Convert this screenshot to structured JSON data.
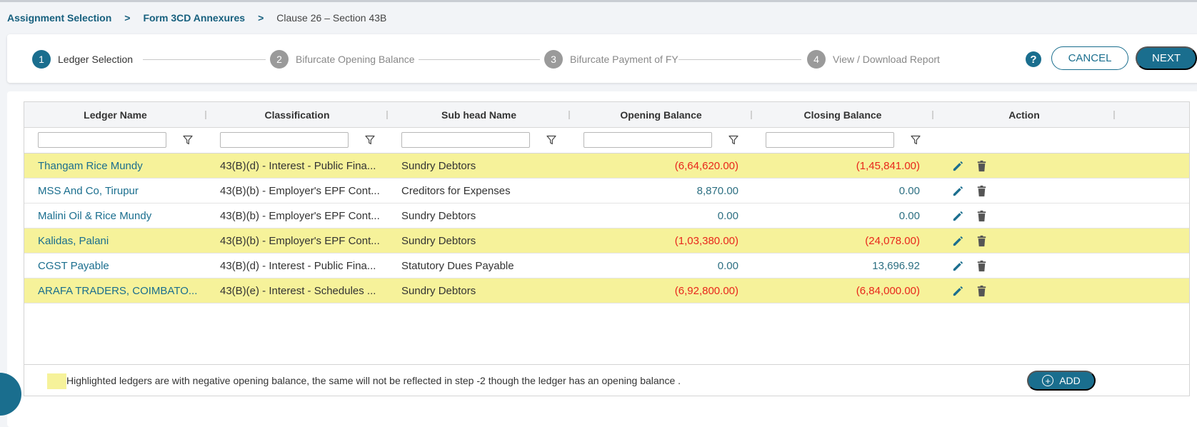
{
  "breadcrumb": {
    "item1": "Assignment Selection",
    "item2": "Form 3CD Annexures",
    "current": "Clause 26 – Section 43B",
    "separator": ">"
  },
  "stepper": {
    "steps": [
      {
        "num": "1",
        "label": "Ledger Selection",
        "active": true
      },
      {
        "num": "2",
        "label": "Bifurcate Opening Balance",
        "active": false
      },
      {
        "num": "3",
        "label": "Bifurcate Payment of FY",
        "active": false
      },
      {
        "num": "4",
        "label": "View / Download Report",
        "active": false
      }
    ],
    "help": "?",
    "cancel_label": "CANCEL",
    "next_label": "NEXT"
  },
  "grid": {
    "columns": [
      "Ledger Name",
      "Classification",
      "Sub head Name",
      "Opening Balance",
      "Closing Balance",
      "Action"
    ],
    "rows": [
      {
        "ledger": "Thangam Rice Mundy",
        "classification": "43(B)(d) - Interest - Public Fina...",
        "subhead": "Sundry Debtors",
        "opening": "(6,64,620.00)",
        "closing": "(1,45,841.00)",
        "highlighted": true
      },
      {
        "ledger": "MSS And Co, Tirupur",
        "classification": "43(B)(b) - Employer's EPF Cont...",
        "subhead": "Creditors for Expenses",
        "opening": "8,870.00",
        "closing": "0.00",
        "highlighted": false
      },
      {
        "ledger": "Malini Oil & Rice Mundy",
        "classification": "43(B)(b) - Employer's EPF Cont...",
        "subhead": "Sundry Debtors",
        "opening": "0.00",
        "closing": "0.00",
        "highlighted": false
      },
      {
        "ledger": "Kalidas, Palani",
        "classification": "43(B)(b) - Employer's EPF Cont...",
        "subhead": "Sundry Debtors",
        "opening": "(1,03,380.00)",
        "closing": "(24,078.00)",
        "highlighted": true
      },
      {
        "ledger": "CGST Payable",
        "classification": "43(B)(d) - Interest - Public Fina...",
        "subhead": "Statutory Dues Payable",
        "opening": "0.00",
        "closing": "13,696.92",
        "highlighted": false
      },
      {
        "ledger": "ARAFA TRADERS, COIMBATO...",
        "classification": "43(B)(e) - Interest - Schedules ...",
        "subhead": "Sundry Debtors",
        "opening": "(6,92,800.00)",
        "closing": "(6,84,000.00)",
        "highlighted": true
      }
    ]
  },
  "footer": {
    "legend_text": "Highlighted ledgers are with negative opening balance, the same will not be reflected in step -2 though the ledger has an opening balance .",
    "add_label": "ADD",
    "add_icon": "+"
  },
  "colors": {
    "primary": "#1a6e8e",
    "highlight": "#f6f29a",
    "negative": "#e8261b"
  }
}
